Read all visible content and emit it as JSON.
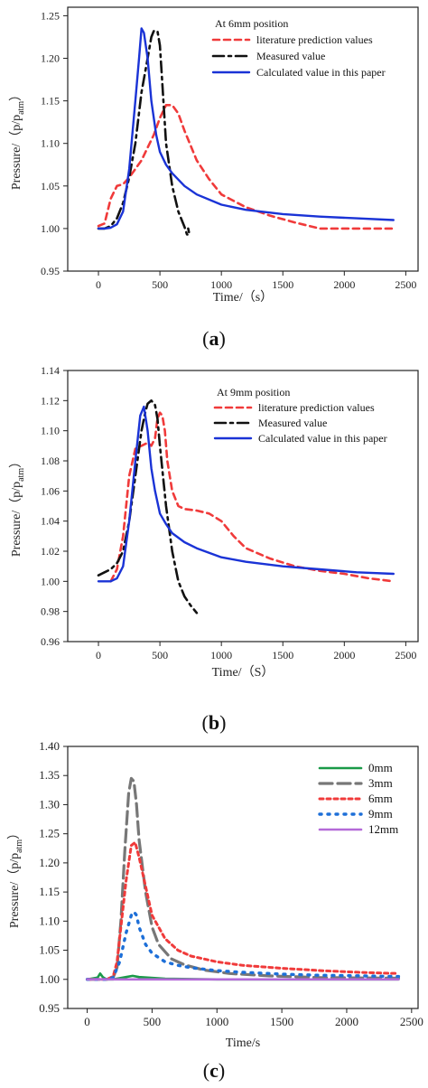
{
  "chart_data": [
    {
      "type": "line",
      "panel_label": "a",
      "xlabel": "Time/（s）",
      "ylabel": "Pressure/（p/p",
      "ylabel_sub": "atm",
      "ylabel_close": "）",
      "legend_title": "At 6mm position",
      "legend_position": "top-right",
      "xlim": [
        -250,
        2600
      ],
      "ylim": [
        0.95,
        1.26
      ],
      "xticks": [
        0,
        500,
        1000,
        1500,
        2000,
        2500
      ],
      "yticks": [
        0.95,
        1.0,
        1.05,
        1.1,
        1.15,
        1.2,
        1.25
      ],
      "ytick_decimals": 2,
      "grid": false,
      "series": [
        {
          "name": "literature prediction values",
          "color": "#f03a3a",
          "dash": "7,5",
          "width": 2.6,
          "x": [
            0,
            50,
            100,
            150,
            200,
            250,
            300,
            350,
            400,
            450,
            500,
            550,
            600,
            650,
            700,
            800,
            900,
            1000,
            1200,
            1400,
            1600,
            1800,
            2000,
            2200,
            2400
          ],
          "y": [
            1.003,
            1.006,
            1.035,
            1.05,
            1.052,
            1.06,
            1.07,
            1.08,
            1.095,
            1.11,
            1.13,
            1.145,
            1.145,
            1.135,
            1.115,
            1.08,
            1.058,
            1.04,
            1.025,
            1.015,
            1.007,
            1.0,
            1.0,
            1.0,
            1.0
          ]
        },
        {
          "name": "Measured value",
          "color": "#111111",
          "dash": "12,5,3,5",
          "width": 2.6,
          "x": [
            0,
            50,
            100,
            150,
            200,
            250,
            300,
            350,
            400,
            430,
            450,
            480,
            500,
            520,
            550,
            600,
            650,
            700,
            720,
            740,
            730
          ],
          "y": [
            1.0,
            1.0,
            1.003,
            1.012,
            1.03,
            1.06,
            1.1,
            1.16,
            1.2,
            1.225,
            1.232,
            1.232,
            1.215,
            1.17,
            1.1,
            1.05,
            1.02,
            1.002,
            0.993,
            0.993,
            1.0
          ]
        },
        {
          "name": "Calculated value in this paper",
          "color": "#1a33d6",
          "dash": "",
          "width": 2.4,
          "x": [
            0,
            50,
            100,
            150,
            200,
            250,
            300,
            330,
            350,
            370,
            400,
            430,
            470,
            500,
            550,
            600,
            700,
            800,
            1000,
            1200,
            1500,
            1800,
            2100,
            2400
          ],
          "y": [
            1.0,
            1.0,
            1.001,
            1.005,
            1.02,
            1.07,
            1.15,
            1.2,
            1.235,
            1.23,
            1.2,
            1.15,
            1.11,
            1.09,
            1.075,
            1.065,
            1.05,
            1.04,
            1.028,
            1.022,
            1.017,
            1.014,
            1.012,
            1.01
          ]
        }
      ]
    },
    {
      "type": "line",
      "panel_label": "b",
      "xlabel": "Time/（S）",
      "ylabel": "Pressure/（p/p",
      "ylabel_sub": "atm",
      "ylabel_close": "）",
      "legend_title": "At 9mm position",
      "legend_position": "top-right",
      "xlim": [
        -250,
        2600
      ],
      "ylim": [
        0.96,
        1.14
      ],
      "xticks": [
        0,
        500,
        1000,
        1500,
        2000,
        2500
      ],
      "yticks": [
        0.96,
        0.98,
        1.0,
        1.02,
        1.04,
        1.06,
        1.08,
        1.1,
        1.12,
        1.14
      ],
      "ytick_decimals": 2,
      "grid": false,
      "series": [
        {
          "name": "literature prediction values",
          "color": "#f03a3a",
          "dash": "7,5",
          "width": 2.6,
          "x": [
            100,
            150,
            200,
            250,
            300,
            350,
            400,
            430,
            460,
            480,
            500,
            520,
            540,
            560,
            600,
            650,
            700,
            800,
            900,
            1000,
            1100,
            1200,
            1400,
            1600,
            1800,
            2000,
            2200,
            2400
          ],
          "y": [
            1.0,
            1.008,
            1.03,
            1.07,
            1.088,
            1.09,
            1.092,
            1.09,
            1.095,
            1.108,
            1.112,
            1.11,
            1.1,
            1.08,
            1.06,
            1.05,
            1.048,
            1.047,
            1.045,
            1.04,
            1.03,
            1.022,
            1.015,
            1.01,
            1.007,
            1.005,
            1.002,
            1.0
          ]
        },
        {
          "name": "Measured value",
          "color": "#111111",
          "dash": "12,5,3,5",
          "width": 2.6,
          "x": [
            0,
            50,
            100,
            150,
            200,
            250,
            300,
            350,
            380,
            400,
            430,
            460,
            480,
            500,
            550,
            600,
            650,
            700,
            750,
            800
          ],
          "y": [
            1.004,
            1.006,
            1.008,
            1.012,
            1.02,
            1.04,
            1.07,
            1.1,
            1.112,
            1.118,
            1.12,
            1.117,
            1.108,
            1.09,
            1.05,
            1.02,
            1.0,
            0.99,
            0.984,
            0.979
          ]
        },
        {
          "name": "Calculated value in this paper",
          "color": "#1a33d6",
          "dash": "",
          "width": 2.4,
          "x": [
            0,
            50,
            100,
            150,
            200,
            250,
            300,
            340,
            370,
            400,
            430,
            460,
            500,
            550,
            600,
            700,
            800,
            1000,
            1200,
            1500,
            1800,
            2100,
            2400
          ],
          "y": [
            1.0,
            1.0,
            1.0,
            1.002,
            1.01,
            1.04,
            1.08,
            1.11,
            1.116,
            1.1,
            1.075,
            1.06,
            1.045,
            1.038,
            1.032,
            1.026,
            1.022,
            1.016,
            1.013,
            1.01,
            1.008,
            1.006,
            1.005
          ]
        }
      ]
    },
    {
      "type": "line",
      "panel_label": "c",
      "xlabel": "Time/s",
      "ylabel": "Pressure/（p/p",
      "ylabel_sub": "atm",
      "ylabel_close": "）",
      "legend_title": "",
      "legend_position": "top-right",
      "xlim": [
        -150,
        2550
      ],
      "ylim": [
        0.95,
        1.4
      ],
      "xticks": [
        0,
        500,
        1000,
        1500,
        2000,
        2500
      ],
      "yticks": [
        0.95,
        1.0,
        1.05,
        1.1,
        1.15,
        1.2,
        1.25,
        1.3,
        1.35,
        1.4
      ],
      "ytick_decimals": 2,
      "grid": false,
      "series": [
        {
          "name": "0mm",
          "color": "#1a9a48",
          "dash": "",
          "width": 2.6,
          "x": [
            0,
            80,
            100,
            120,
            150,
            200,
            300,
            350,
            400,
            600,
            1000,
            2400
          ],
          "y": [
            1.0,
            1.003,
            1.01,
            1.004,
            1.0,
            1.0,
            1.004,
            1.006,
            1.004,
            1.001,
            1.0,
            1.0
          ]
        },
        {
          "name": "3mm",
          "color": "#777777",
          "dash": "14,6",
          "width": 3.2,
          "x": [
            0,
            150,
            200,
            230,
            260,
            290,
            320,
            340,
            360,
            380,
            400,
            450,
            500,
            550,
            650,
            750,
            900,
            1100,
            1400,
            1800,
            2400
          ],
          "y": [
            1.0,
            1.0,
            1.003,
            1.02,
            1.1,
            1.22,
            1.32,
            1.345,
            1.34,
            1.3,
            1.24,
            1.15,
            1.09,
            1.06,
            1.035,
            1.025,
            1.016,
            1.01,
            1.006,
            1.003,
            1.002
          ]
        },
        {
          "name": "6mm",
          "color": "#f03a3a",
          "dash": "4,4",
          "width": 3.0,
          "x": [
            0,
            150,
            200,
            230,
            260,
            300,
            340,
            370,
            400,
            450,
            500,
            600,
            700,
            800,
            1000,
            1200,
            1500,
            1800,
            2100,
            2400
          ],
          "y": [
            1.0,
            1.0,
            1.005,
            1.03,
            1.09,
            1.17,
            1.23,
            1.235,
            1.21,
            1.16,
            1.11,
            1.07,
            1.05,
            1.04,
            1.03,
            1.024,
            1.019,
            1.015,
            1.012,
            1.01
          ]
        },
        {
          "name": "9mm",
          "color": "#1d6fd8",
          "dash": "2,7",
          "width": 3.4,
          "x": [
            0,
            150,
            200,
            250,
            300,
            340,
            360,
            380,
            400,
            450,
            500,
            600,
            700,
            800,
            1000,
            1200,
            1500,
            1800,
            2100,
            2400
          ],
          "y": [
            1.0,
            1.0,
            1.003,
            1.03,
            1.08,
            1.11,
            1.116,
            1.11,
            1.09,
            1.06,
            1.045,
            1.03,
            1.024,
            1.02,
            1.015,
            1.012,
            1.009,
            1.007,
            1.006,
            1.005
          ]
        },
        {
          "name": "12mm",
          "color": "#b46ad8",
          "dash": "",
          "width": 2.6,
          "x": [
            0,
            500,
            1000,
            1500,
            2000,
            2400
          ],
          "y": [
            1.0,
            1.0,
            1.0,
            1.0,
            1.0,
            1.0
          ]
        }
      ]
    }
  ]
}
